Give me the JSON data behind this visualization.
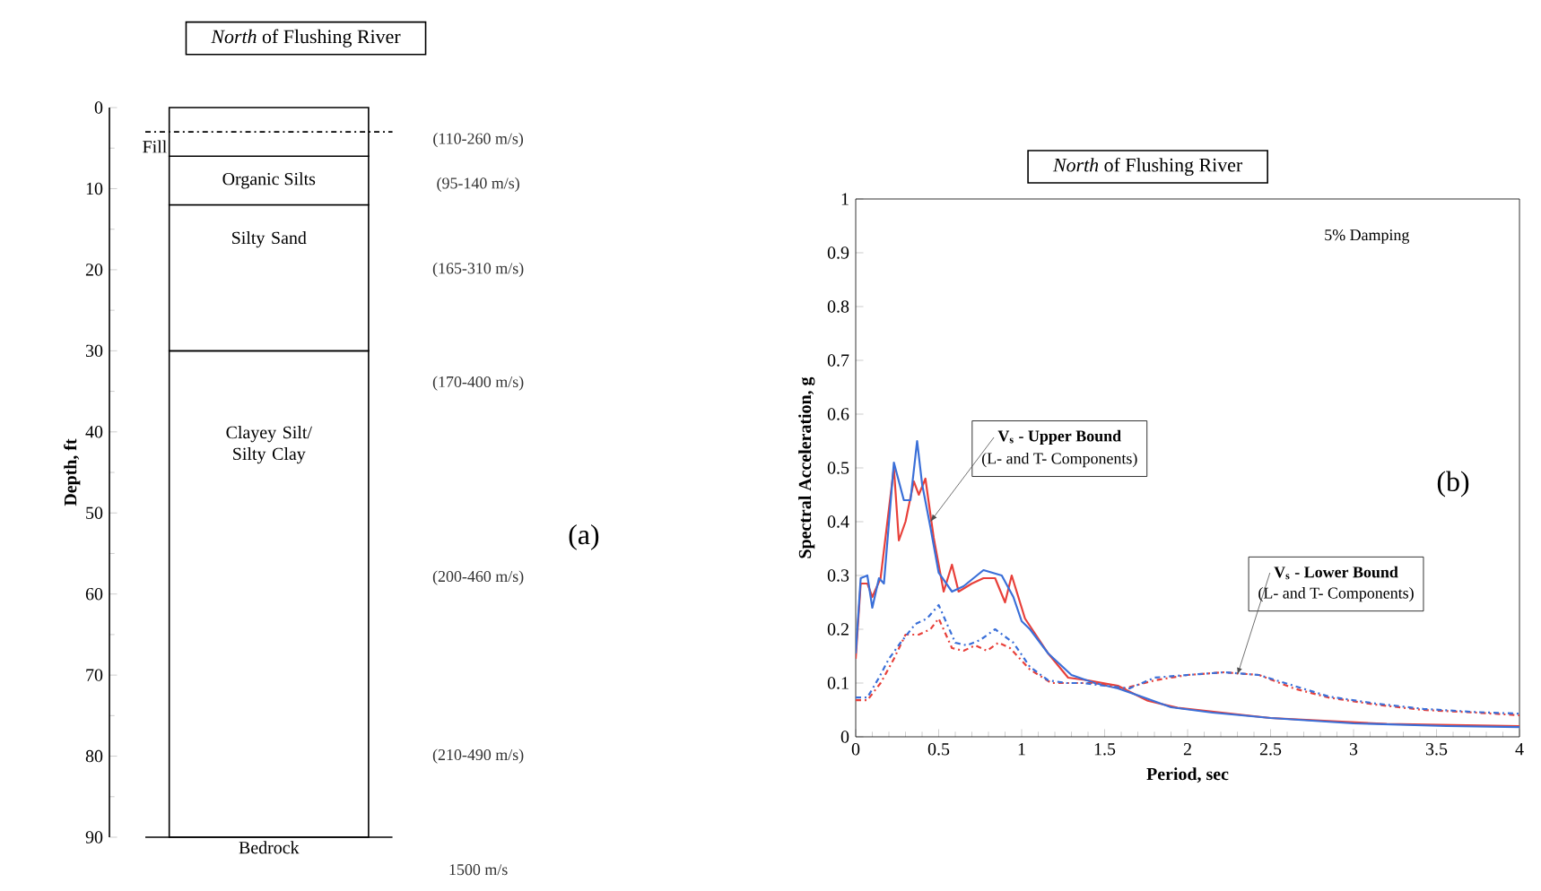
{
  "chart_data": [
    {
      "type": "bar",
      "stacked": true,
      "title": "*North* of Flushing River",
      "ylabel": "Depth, ft",
      "ylim": [
        90,
        0
      ],
      "yticks": [
        0,
        10,
        20,
        30,
        40,
        50,
        60,
        70,
        80,
        90
      ],
      "categories": [
        null
      ],
      "series": [
        {
          "name": "Fill",
          "color": "#ffffff",
          "values": [
            6
          ]
        },
        {
          "name": "Organic Silts",
          "color": "#ffffff",
          "values": [
            6
          ]
        },
        {
          "name": "Silty Sand",
          "color": "#ffffff",
          "values": [
            18
          ]
        },
        {
          "name": "Clayey Silt/ Silty Clay",
          "color": "#ffffff",
          "values": [
            60
          ]
        }
      ],
      "ref_lines": [
        {
          "axis": "y",
          "value": 3,
          "line_style": "dashed"
        },
        {
          "axis": "y",
          "value": 90,
          "label": "Bedrock"
        }
      ],
      "annotations": [
        "(110-260 m/s)",
        "(95-140 m/s)",
        "(165-310 m/s)",
        "(170-400 m/s)",
        "(200-460 m/s)",
        "(210-490 m/s)",
        "(a)",
        "1500 m/s"
      ]
    },
    {
      "type": "line",
      "title": "*North* of Flushing River",
      "xlabel": "Period, sec",
      "ylabel": "Spectral Acceleration, g",
      "xlim": [
        0,
        4
      ],
      "ylim": [
        0,
        1
      ],
      "xticks": [
        0,
        0.5,
        1,
        1.5,
        2,
        2.5,
        3,
        3.5,
        4
      ],
      "yticks": [
        0,
        0.1,
        0.2,
        0.3,
        0.4,
        0.5,
        0.6,
        0.7,
        0.8,
        0.9,
        1
      ],
      "series": [
        {
          "color": "#e8403a",
          "line_style": "solid",
          "x": [
            0,
            0.03,
            0.07,
            0.1,
            0.15,
            0.23,
            0.26,
            0.3,
            0.35,
            0.38,
            0.42,
            0.47,
            0.53,
            0.58,
            0.62,
            0.7,
            0.77,
            0.84,
            0.9,
            0.94,
            1.02,
            1.16,
            1.28,
            1.4,
            1.58,
            1.76,
            1.94,
            2.5,
            3.2,
            4.0
          ],
          "values": [
            0.145,
            0.285,
            0.285,
            0.26,
            0.295,
            0.5,
            0.365,
            0.4,
            0.475,
            0.45,
            0.48,
            0.37,
            0.27,
            0.32,
            0.27,
            0.285,
            0.295,
            0.295,
            0.25,
            0.3,
            0.22,
            0.155,
            0.11,
            0.105,
            0.095,
            0.067,
            0.054,
            0.035,
            0.024,
            0.02
          ]
        },
        {
          "color": "#3a6fd8",
          "line_style": "solid",
          "x": [
            0,
            0.03,
            0.07,
            0.1,
            0.14,
            0.17,
            0.23,
            0.29,
            0.33,
            0.37,
            0.4,
            0.45,
            0.5,
            0.58,
            0.65,
            0.77,
            0.88,
            0.95,
            1.0,
            1.05,
            1.16,
            1.3,
            1.44,
            1.58,
            1.72,
            1.9,
            2.15,
            2.5,
            3.0,
            3.56,
            4.0
          ],
          "values": [
            0.155,
            0.295,
            0.3,
            0.24,
            0.295,
            0.285,
            0.51,
            0.44,
            0.44,
            0.55,
            0.47,
            0.39,
            0.305,
            0.27,
            0.28,
            0.31,
            0.3,
            0.26,
            0.215,
            0.2,
            0.155,
            0.115,
            0.1,
            0.09,
            0.075,
            0.055,
            0.045,
            0.035,
            0.025,
            0.02,
            0.018
          ]
        },
        {
          "color": "#e8403a",
          "line_style": "dashed",
          "x": [
            0,
            0.07,
            0.15,
            0.23,
            0.3,
            0.38,
            0.45,
            0.5,
            0.58,
            0.65,
            0.72,
            0.79,
            0.86,
            0.93,
            1.05,
            1.18,
            1.3,
            1.44,
            1.62,
            1.8,
            2.0,
            2.22,
            2.43,
            2.64,
            2.85,
            3.13,
            3.42,
            3.74,
            4.0
          ],
          "values": [
            0.068,
            0.068,
            0.1,
            0.145,
            0.19,
            0.19,
            0.2,
            0.22,
            0.165,
            0.16,
            0.17,
            0.16,
            0.175,
            0.165,
            0.125,
            0.1,
            0.1,
            0.1,
            0.09,
            0.105,
            0.115,
            0.12,
            0.115,
            0.09,
            0.073,
            0.06,
            0.05,
            0.045,
            0.04
          ]
        },
        {
          "color": "#3a6fd8",
          "line_style": "dashed",
          "x": [
            0,
            0.07,
            0.14,
            0.2,
            0.27,
            0.36,
            0.43,
            0.5,
            0.6,
            0.67,
            0.75,
            0.84,
            0.95,
            1.05,
            1.16,
            1.27,
            1.37,
            1.5,
            1.65,
            1.8,
            2.0,
            2.22,
            2.43,
            2.64,
            2.85,
            3.13,
            3.42,
            3.74,
            4.0
          ],
          "values": [
            0.073,
            0.073,
            0.11,
            0.145,
            0.175,
            0.21,
            0.22,
            0.245,
            0.175,
            0.17,
            0.18,
            0.2,
            0.175,
            0.13,
            0.105,
            0.1,
            0.1,
            0.095,
            0.09,
            0.11,
            0.115,
            0.12,
            0.115,
            0.095,
            0.075,
            0.062,
            0.052,
            0.046,
            0.043
          ]
        }
      ],
      "annotations": [
        {
          "text": "V$_{s}$ - Upper Bound",
          "x": 0.45,
          "y": 0.4
        },
        "(L- and T- Components)",
        {
          "text": "V$_{s}$ - Lower Bound",
          "x": 2.3,
          "y": 0.115
        },
        "(L- and T- Components)",
        "5% Damping",
        "(b)"
      ]
    }
  ]
}
